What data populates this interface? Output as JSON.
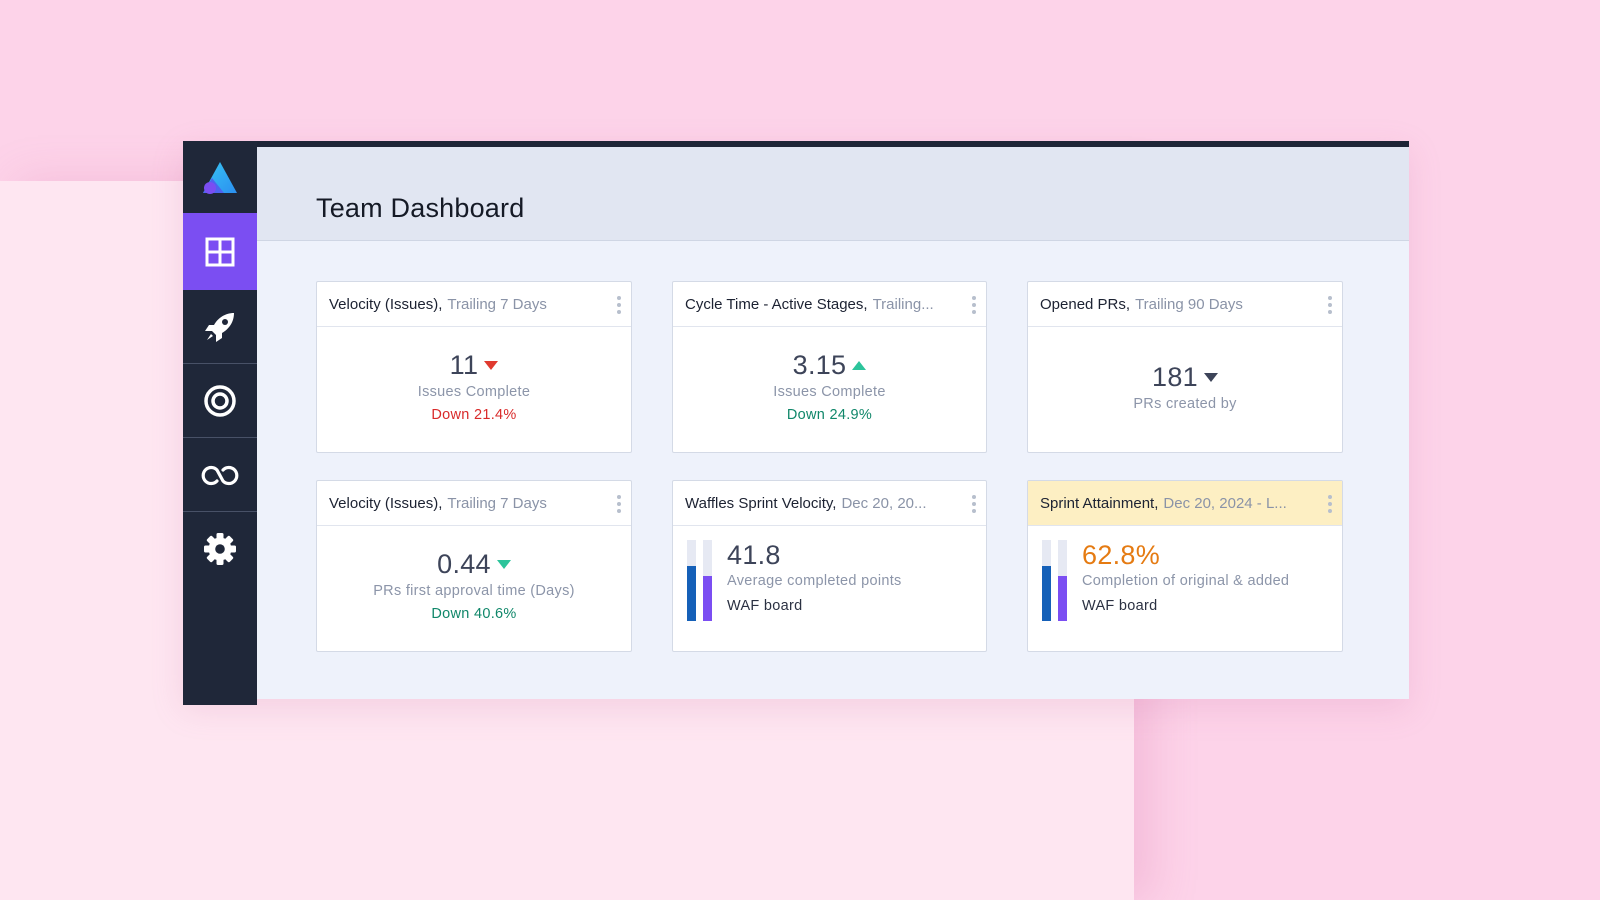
{
  "page": {
    "title": "Team Dashboard"
  },
  "sidebar": {
    "logo_icon": "app-logo-triangle",
    "items": [
      {
        "name": "dashboard",
        "icon": "grid-icon",
        "active": true
      },
      {
        "name": "deployments",
        "icon": "rocket-icon",
        "active": false
      },
      {
        "name": "goals",
        "icon": "target-icon",
        "active": false
      },
      {
        "name": "integrations",
        "icon": "infinity-link-icon",
        "active": false
      },
      {
        "name": "settings",
        "icon": "gear-icon",
        "active": false
      }
    ]
  },
  "cards": [
    {
      "title": "Velocity (Issues),",
      "subtitle": "Trailing 7 Days",
      "value": "11",
      "trend": "down",
      "trend_color": "#e03a2f",
      "label": "Issues Complete",
      "change": "Down 21.4%",
      "change_tone": "red"
    },
    {
      "title": "Cycle Time - Active Stages,",
      "subtitle": "Trailing...",
      "value": "3.15",
      "trend": "up",
      "trend_color": "#2cc49b",
      "label": "Issues Complete",
      "change": "Down 24.9%",
      "change_tone": "green"
    },
    {
      "title": "Opened PRs,",
      "subtitle": "Trailing 90 Days",
      "value": "181",
      "trend": "down",
      "trend_color": "#3d4459",
      "label": "PRs created by",
      "change": ""
    },
    {
      "title": "Velocity (Issues),",
      "subtitle": "Trailing 7 Days",
      "value": "0.44",
      "trend": "down",
      "trend_color": "#2cc49b",
      "label": "PRs first approval time (Days)",
      "change": "Down 40.6%",
      "change_tone": "green"
    },
    {
      "title": "Waffles Sprint Velocity,",
      "subtitle": "Dec 20, 20...",
      "value": "41.8",
      "label": "Average completed points",
      "board": "WAF board",
      "bars": [
        0.68,
        0.56
      ],
      "bar_colors": [
        "#1560b8",
        "#7b4ef2"
      ]
    },
    {
      "title": "Sprint Attainment,",
      "subtitle": "Dec 20, 2024 - L...",
      "value": "62.8%",
      "value_color": "#e57b12",
      "label": "Completion of original & added",
      "board": "WAF board",
      "bars": [
        0.68,
        0.56
      ],
      "bar_colors": [
        "#1560b8",
        "#7b4ef2"
      ],
      "highlight_color": "#fdefc3"
    }
  ]
}
